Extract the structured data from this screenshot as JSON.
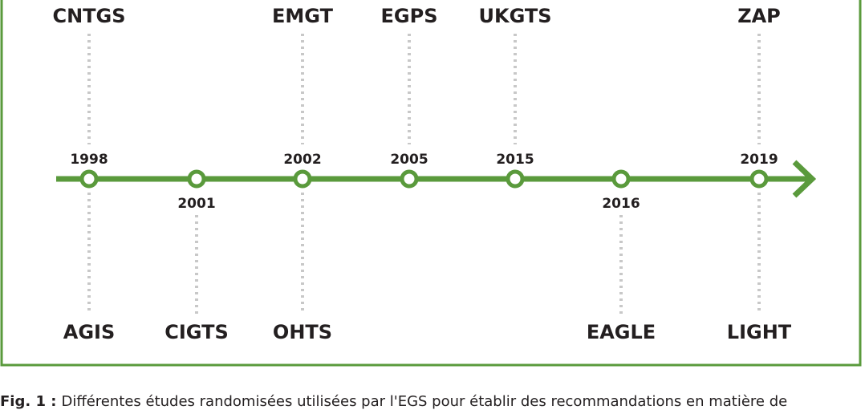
{
  "timeline": {
    "nodes": [
      {
        "year": "1998",
        "top": "CNTGS",
        "bottom": "AGIS"
      },
      {
        "year": "2001",
        "bottom": "CIGTS"
      },
      {
        "year": "2002",
        "top": "EMGT",
        "bottom": "OHTS"
      },
      {
        "year": "2005",
        "top": "EGPS"
      },
      {
        "year": "2015",
        "top": "UKGTS"
      },
      {
        "year": "2016",
        "bottom": "EAGLE"
      },
      {
        "year": "2019",
        "top": "ZAP",
        "bottom": "LIGHT"
      }
    ]
  },
  "caption": {
    "label": "Fig. 1 :",
    "text": "Différentes études randomisées utilisées par l'EGS pour établir des recommandations en matière de"
  }
}
